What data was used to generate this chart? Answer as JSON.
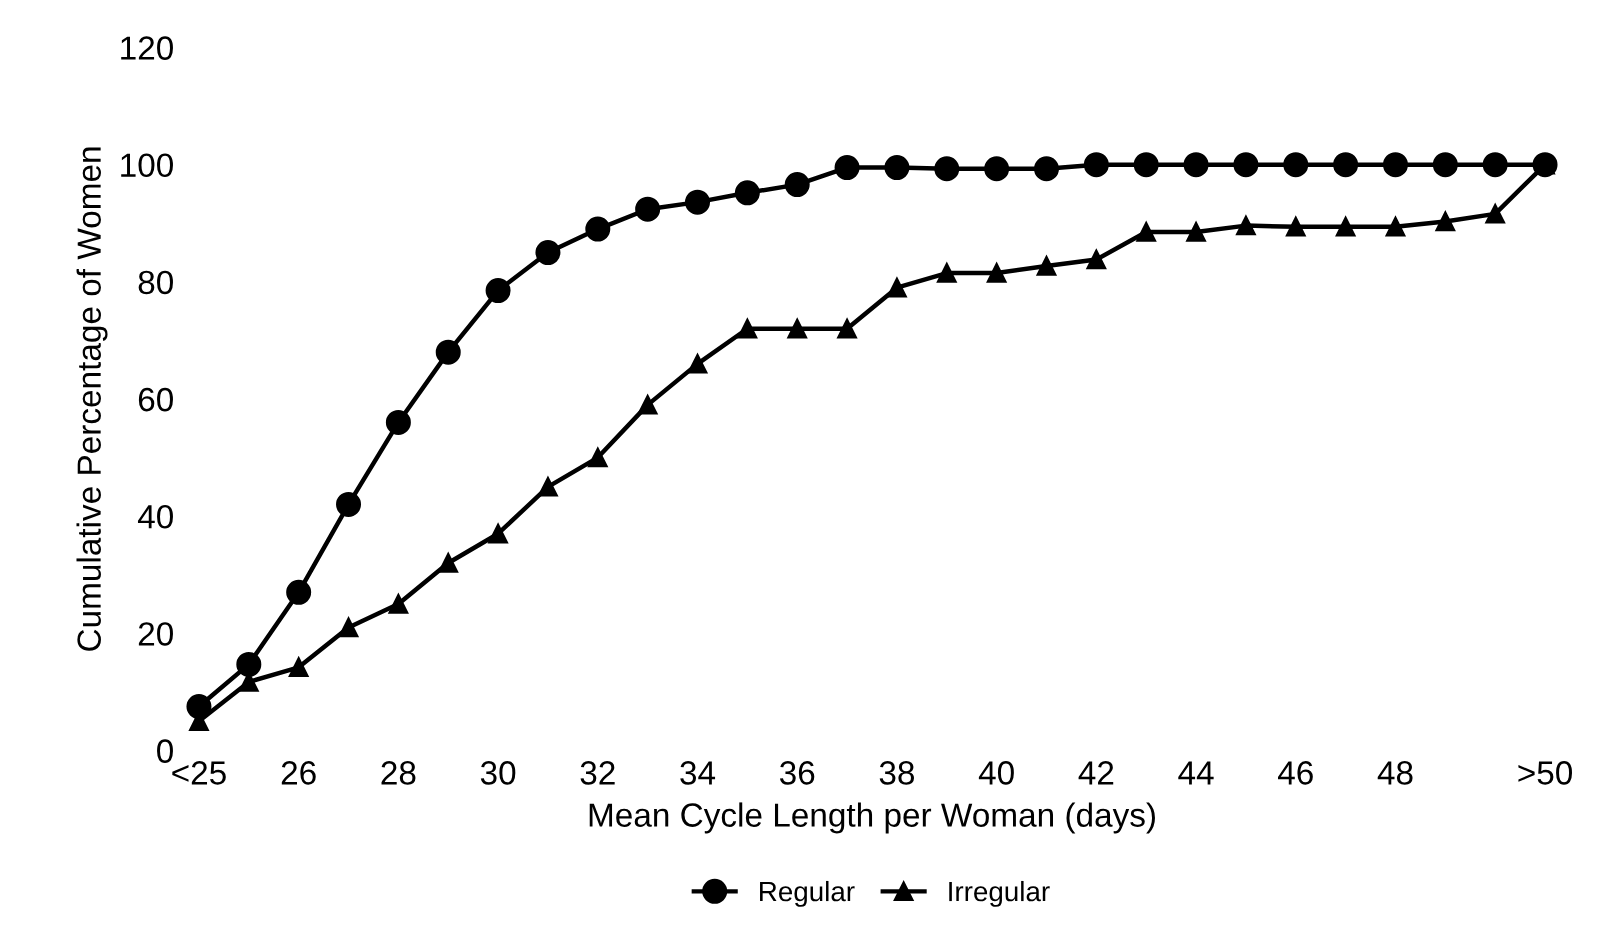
{
  "chart_data": {
    "type": "line",
    "xlabel": "Mean Cycle Length per Woman (days)",
    "ylabel": "Cumulative Percentage of Women",
    "categories": [
      "<25",
      null,
      "26",
      null,
      "28",
      null,
      "30",
      null,
      "32",
      null,
      "34",
      null,
      "36",
      null,
      "38",
      null,
      "40",
      null,
      "42",
      null,
      "44",
      null,
      "46",
      null,
      "48",
      null,
      null,
      ">50"
    ],
    "ylim": [
      0,
      120
    ],
    "yticks": [
      0,
      20,
      40,
      60,
      80,
      100,
      120
    ],
    "grid": false,
    "legend": "bottom",
    "series": [
      {
        "name": "Regular",
        "color": "#000000",
        "marker": "circle",
        "values": [
          7.5,
          14.7,
          27,
          42,
          56,
          68,
          78.5,
          85,
          89,
          92.4,
          93.6,
          95.2,
          96.6,
          99.5,
          99.5,
          99.3,
          99.3,
          99.3,
          100,
          100,
          100,
          100,
          100,
          100,
          100,
          100,
          100,
          100
        ]
      },
      {
        "name": "Irregular",
        "color": "#000000",
        "marker": "triangle",
        "values": [
          5,
          11.7,
          14.2,
          21,
          25,
          32,
          37,
          45,
          50,
          59,
          66,
          72,
          72,
          72,
          79,
          81.5,
          81.5,
          82.7,
          83.8,
          88.5,
          88.5,
          89.6,
          89.4,
          89.4,
          89.4,
          90.3,
          91.6,
          100
        ]
      }
    ]
  }
}
